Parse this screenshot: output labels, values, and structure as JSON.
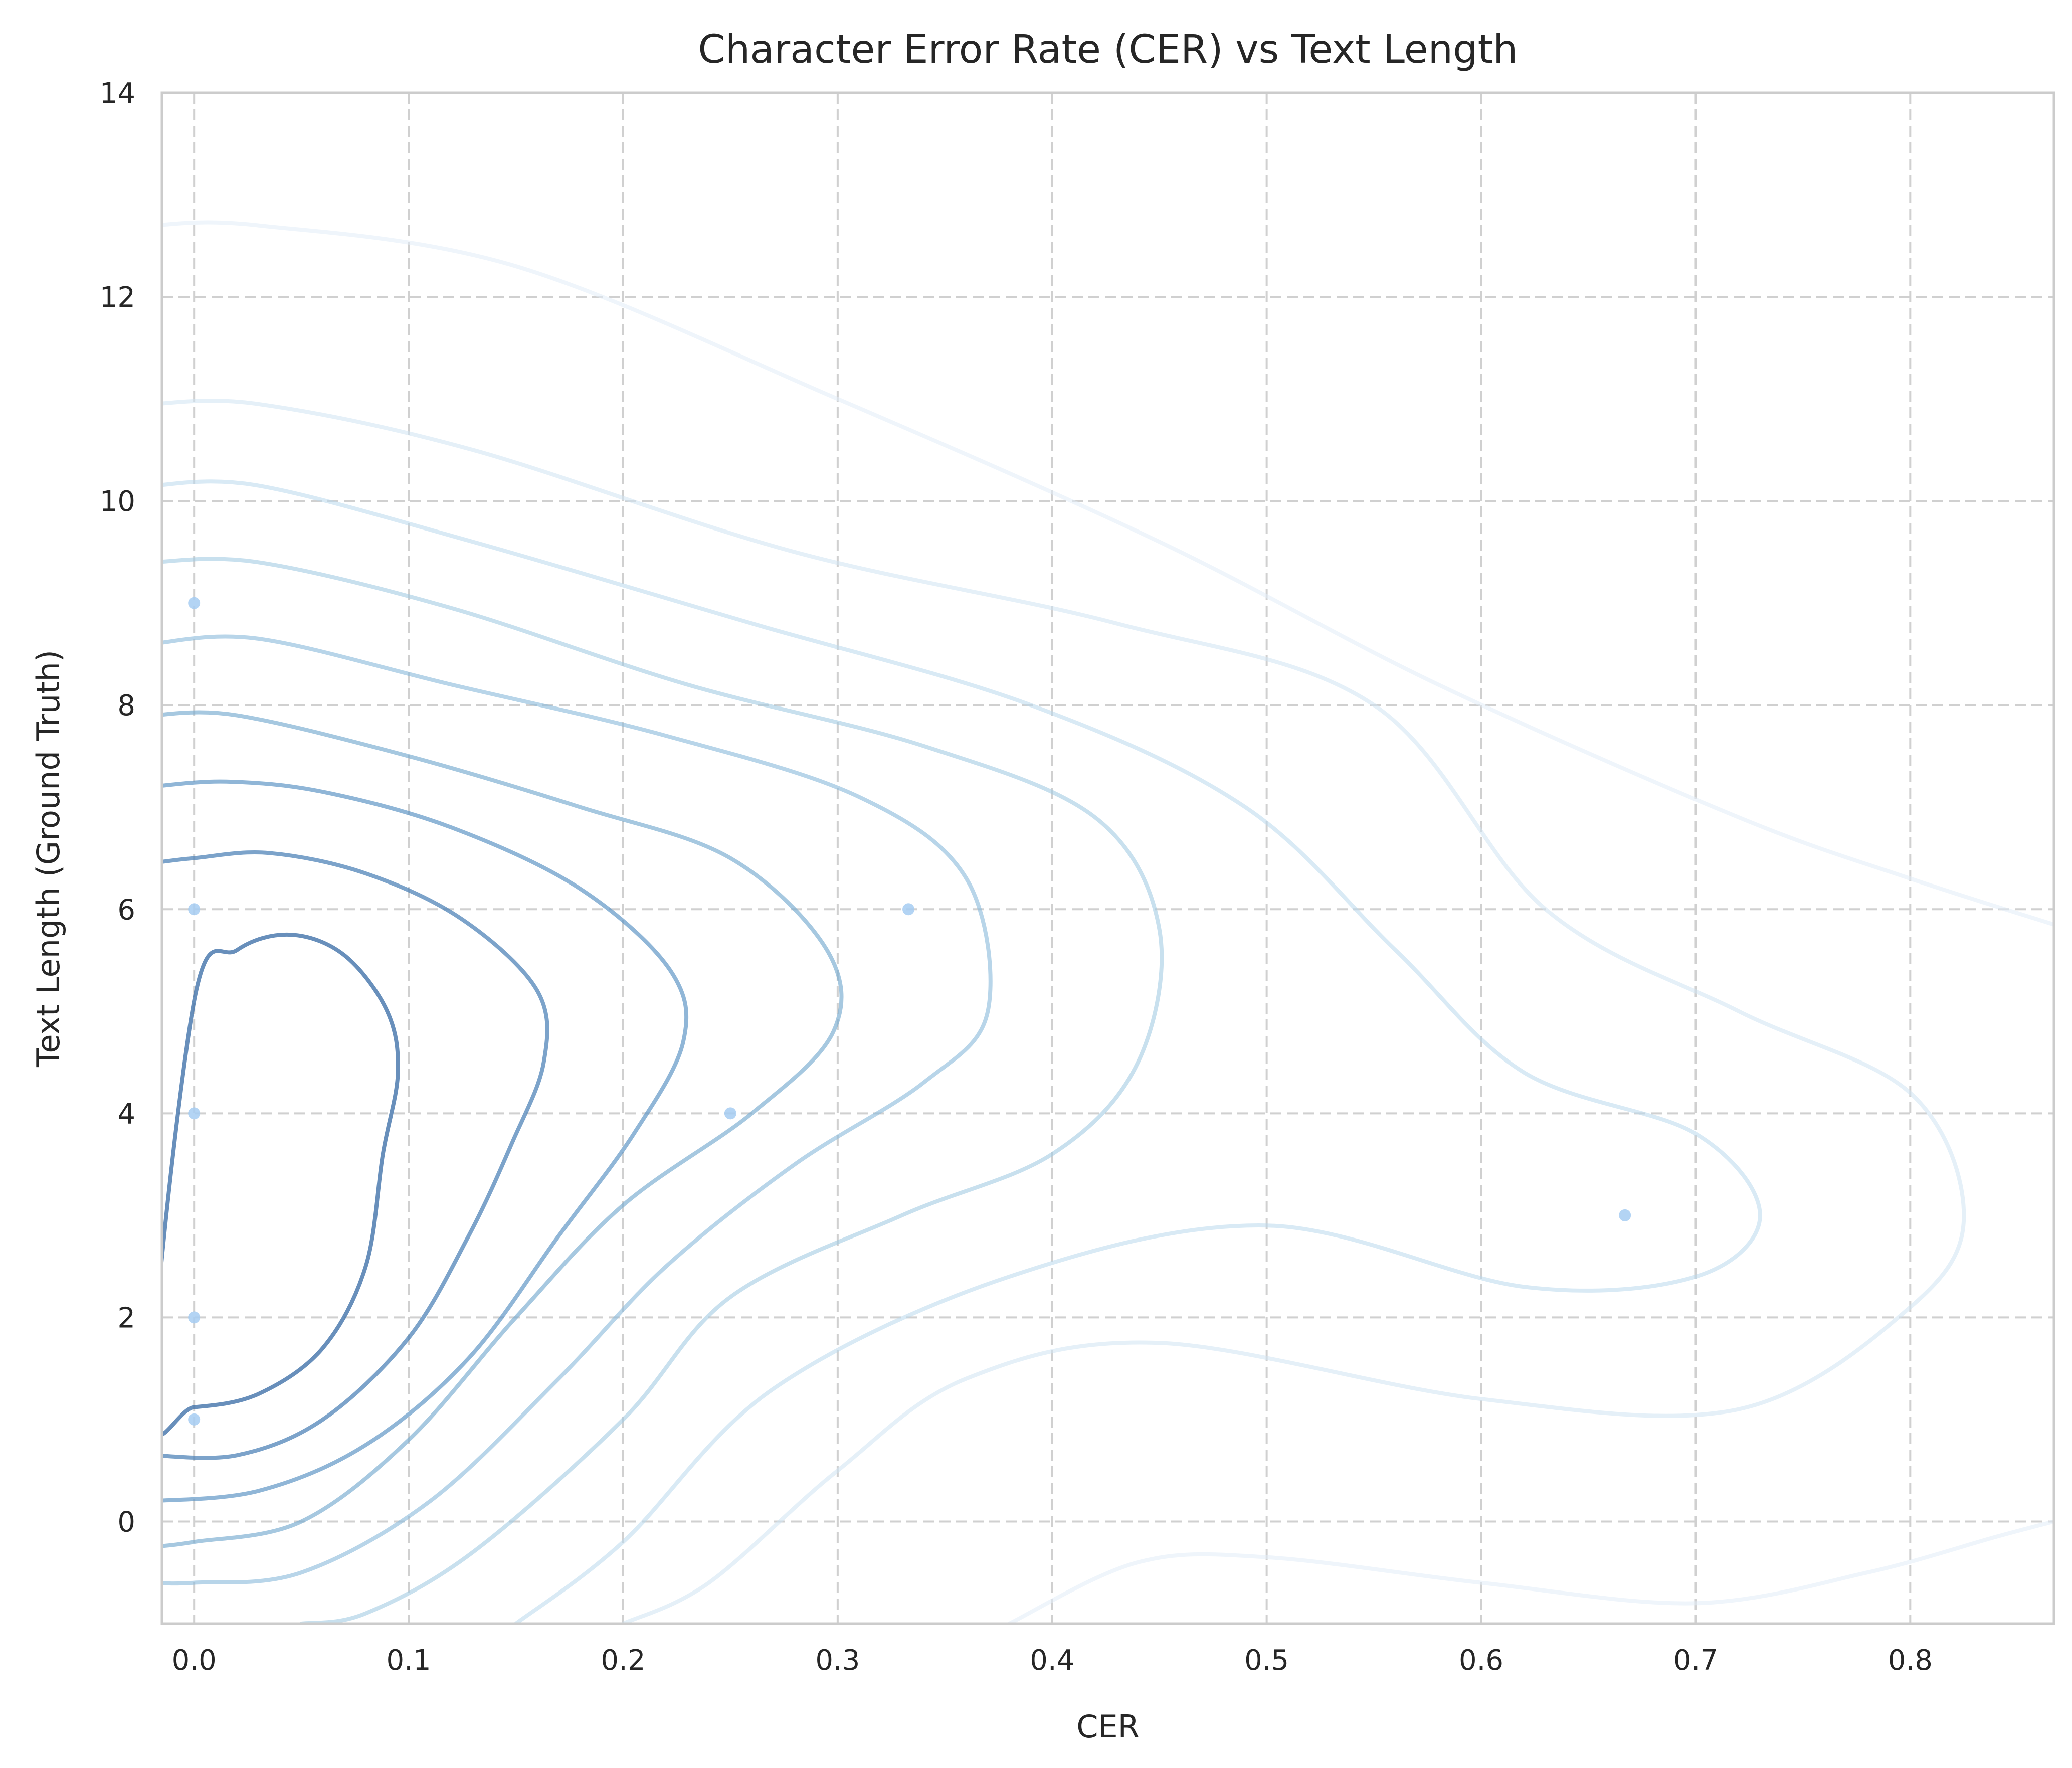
{
  "chart_data": {
    "type": "kde-contour",
    "title": "Character Error Rate (CER) vs Text Length",
    "xlabel": "CER",
    "ylabel": "Text Length (Ground Truth)",
    "xlim": [
      -0.015,
      0.867
    ],
    "ylim": [
      -1.0,
      14.0
    ],
    "xticks": [
      0.0,
      0.1,
      0.2,
      0.3,
      0.4,
      0.5,
      0.6,
      0.7,
      0.8
    ],
    "xtick_labels": [
      "0.0",
      "0.1",
      "0.2",
      "0.3",
      "0.4",
      "0.5",
      "0.6",
      "0.7",
      "0.8"
    ],
    "yticks": [
      0,
      2,
      4,
      6,
      8,
      10,
      12,
      14
    ],
    "ytick_labels": [
      "0",
      "2",
      "4",
      "6",
      "8",
      "10",
      "12",
      "14"
    ],
    "grid": true,
    "grid_style": "dashed",
    "point_color": "#a6cdf2",
    "points": [
      {
        "x": 0.0,
        "y": 9
      },
      {
        "x": 0.0,
        "y": 6
      },
      {
        "x": 0.0,
        "y": 4
      },
      {
        "x": 0.0,
        "y": 2
      },
      {
        "x": 0.0,
        "y": 1
      },
      {
        "x": 0.25,
        "y": 4
      },
      {
        "x": 0.333,
        "y": 6
      },
      {
        "x": 0.667,
        "y": 3
      }
    ],
    "contour_levels": [
      {
        "color": "#3e6fa8",
        "opacity": 0.78,
        "closed": true,
        "points": [
          [
            0.0,
            5.1
          ],
          [
            0.02,
            5.6
          ],
          [
            0.045,
            5.75
          ],
          [
            0.07,
            5.55
          ],
          [
            0.09,
            5.0
          ],
          [
            0.095,
            4.4
          ],
          [
            0.088,
            3.6
          ],
          [
            0.08,
            2.5
          ],
          [
            0.06,
            1.7
          ],
          [
            0.03,
            1.25
          ],
          [
            0.0,
            1.12
          ],
          [
            -0.02,
            1.15
          ]
        ]
      },
      {
        "color": "#4a80b6",
        "opacity": 0.72,
        "closed": false,
        "points": [
          [
            -0.02,
            6.45
          ],
          [
            0.0,
            6.5
          ],
          [
            0.035,
            6.55
          ],
          [
            0.08,
            6.35
          ],
          [
            0.125,
            5.9
          ],
          [
            0.16,
            5.2
          ],
          [
            0.163,
            4.5
          ],
          [
            0.148,
            3.7
          ],
          [
            0.128,
            2.8
          ],
          [
            0.1,
            1.8
          ],
          [
            0.06,
            1.0
          ],
          [
            0.02,
            0.65
          ],
          [
            -0.02,
            0.65
          ]
        ]
      },
      {
        "color": "#5b93c4",
        "opacity": 0.68,
        "closed": false,
        "points": [
          [
            -0.02,
            7.2
          ],
          [
            0.015,
            7.25
          ],
          [
            0.06,
            7.15
          ],
          [
            0.12,
            6.8
          ],
          [
            0.18,
            6.2
          ],
          [
            0.222,
            5.4
          ],
          [
            0.228,
            4.7
          ],
          [
            0.205,
            3.8
          ],
          [
            0.17,
            2.8
          ],
          [
            0.128,
            1.6
          ],
          [
            0.08,
            0.75
          ],
          [
            0.03,
            0.3
          ],
          [
            -0.02,
            0.2
          ]
        ]
      },
      {
        "color": "#76aad0",
        "opacity": 0.65,
        "closed": false,
        "points": [
          [
            -0.02,
            7.9
          ],
          [
            0.02,
            7.9
          ],
          [
            0.1,
            7.5
          ],
          [
            0.18,
            7.0
          ],
          [
            0.25,
            6.5
          ],
          [
            0.295,
            5.6
          ],
          [
            0.298,
            4.8
          ],
          [
            0.26,
            4.0
          ],
          [
            0.2,
            3.1
          ],
          [
            0.15,
            2.0
          ],
          [
            0.1,
            0.8
          ],
          [
            0.05,
            0.0
          ],
          [
            0.0,
            -0.2
          ],
          [
            -0.02,
            -0.25
          ]
        ]
      },
      {
        "color": "#8dbcdc",
        "opacity": 0.62,
        "closed": false,
        "points": [
          [
            -0.02,
            8.6
          ],
          [
            0.03,
            8.65
          ],
          [
            0.12,
            8.2
          ],
          [
            0.22,
            7.7
          ],
          [
            0.31,
            7.1
          ],
          [
            0.36,
            6.3
          ],
          [
            0.37,
            5.0
          ],
          [
            0.34,
            4.3
          ],
          [
            0.28,
            3.5
          ],
          [
            0.22,
            2.5
          ],
          [
            0.17,
            1.4
          ],
          [
            0.11,
            0.2
          ],
          [
            0.05,
            -0.5
          ],
          [
            0.0,
            -0.6
          ],
          [
            -0.02,
            -0.6
          ]
        ]
      },
      {
        "color": "#a4cbe3",
        "opacity": 0.6,
        "closed": false,
        "points": [
          [
            -0.02,
            9.4
          ],
          [
            0.03,
            9.4
          ],
          [
            0.12,
            8.95
          ],
          [
            0.23,
            8.2
          ],
          [
            0.34,
            7.6
          ],
          [
            0.42,
            6.9
          ],
          [
            0.45,
            5.8
          ],
          [
            0.44,
            4.5
          ],
          [
            0.4,
            3.6
          ],
          [
            0.33,
            3.0
          ],
          [
            0.25,
            2.2
          ],
          [
            0.2,
            1.0
          ],
          [
            0.13,
            -0.3
          ],
          [
            0.08,
            -0.9
          ],
          [
            0.05,
            -1.0
          ]
        ]
      },
      {
        "color": "#bad8ec",
        "opacity": 0.55,
        "closed": false,
        "points": [
          [
            -0.02,
            10.15
          ],
          [
            0.03,
            10.15
          ],
          [
            0.13,
            9.6
          ],
          [
            0.26,
            8.8
          ],
          [
            0.39,
            8.0
          ],
          [
            0.49,
            7.0
          ],
          [
            0.56,
            5.6
          ],
          [
            0.62,
            4.4
          ],
          [
            0.7,
            3.8
          ],
          [
            0.73,
            3.0
          ],
          [
            0.7,
            2.4
          ],
          [
            0.62,
            2.3
          ],
          [
            0.5,
            2.9
          ],
          [
            0.38,
            2.4
          ],
          [
            0.27,
            1.3
          ],
          [
            0.2,
            -0.2
          ],
          [
            0.15,
            -1.0
          ]
        ]
      },
      {
        "color": "#cfe3f2",
        "opacity": 0.55,
        "closed": false,
        "points": [
          [
            -0.02,
            10.95
          ],
          [
            0.03,
            10.95
          ],
          [
            0.13,
            10.5
          ],
          [
            0.28,
            9.5
          ],
          [
            0.43,
            8.8
          ],
          [
            0.55,
            8.0
          ],
          [
            0.63,
            6.0
          ],
          [
            0.72,
            5.0
          ],
          [
            0.8,
            4.2
          ],
          [
            0.825,
            3.0
          ],
          [
            0.8,
            2.1
          ],
          [
            0.72,
            1.1
          ],
          [
            0.6,
            1.2
          ],
          [
            0.45,
            1.75
          ],
          [
            0.36,
            1.4
          ],
          [
            0.3,
            0.5
          ],
          [
            0.24,
            -0.6
          ],
          [
            0.2,
            -1.0
          ]
        ]
      },
      {
        "color": "#e1edf7",
        "opacity": 0.55,
        "closed": false,
        "points": [
          [
            -0.02,
            12.7
          ],
          [
            0.03,
            12.7
          ],
          [
            0.15,
            12.3
          ],
          [
            0.3,
            11.0
          ],
          [
            0.45,
            9.6
          ],
          [
            0.58,
            8.2
          ],
          [
            0.72,
            6.9
          ],
          [
            0.8,
            6.3
          ],
          [
            0.867,
            5.85
          ]
        ]
      },
      {
        "color": "#e1edf7",
        "opacity": 0.55,
        "closed": false,
        "points": [
          [
            0.38,
            -1.0
          ],
          [
            0.44,
            -0.4
          ],
          [
            0.5,
            -0.35
          ],
          [
            0.6,
            -0.6
          ],
          [
            0.7,
            -0.8
          ],
          [
            0.78,
            -0.5
          ],
          [
            0.84,
            -0.15
          ],
          [
            0.867,
            0.0
          ]
        ]
      }
    ]
  }
}
